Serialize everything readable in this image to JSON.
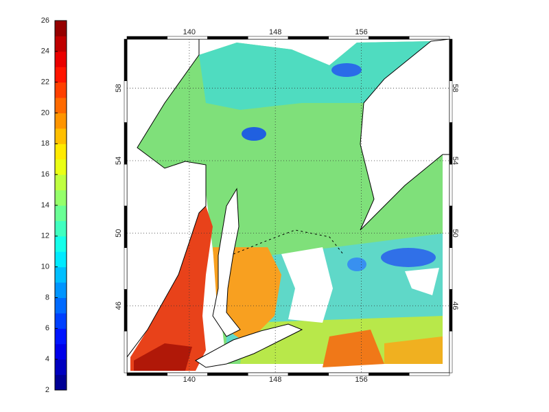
{
  "colorbar": {
    "lim": [
      2,
      26
    ],
    "ticks": [
      2,
      4,
      6,
      8,
      10,
      12,
      14,
      16,
      18,
      20,
      22,
      24,
      26
    ]
  },
  "map": {
    "xlim": [
      134.2,
      164.2
    ],
    "ylim": [
      42.3,
      60.7
    ],
    "xticks": [
      140,
      148,
      156
    ],
    "yticks": [
      46,
      50,
      54,
      58
    ],
    "grid": true
  }
}
